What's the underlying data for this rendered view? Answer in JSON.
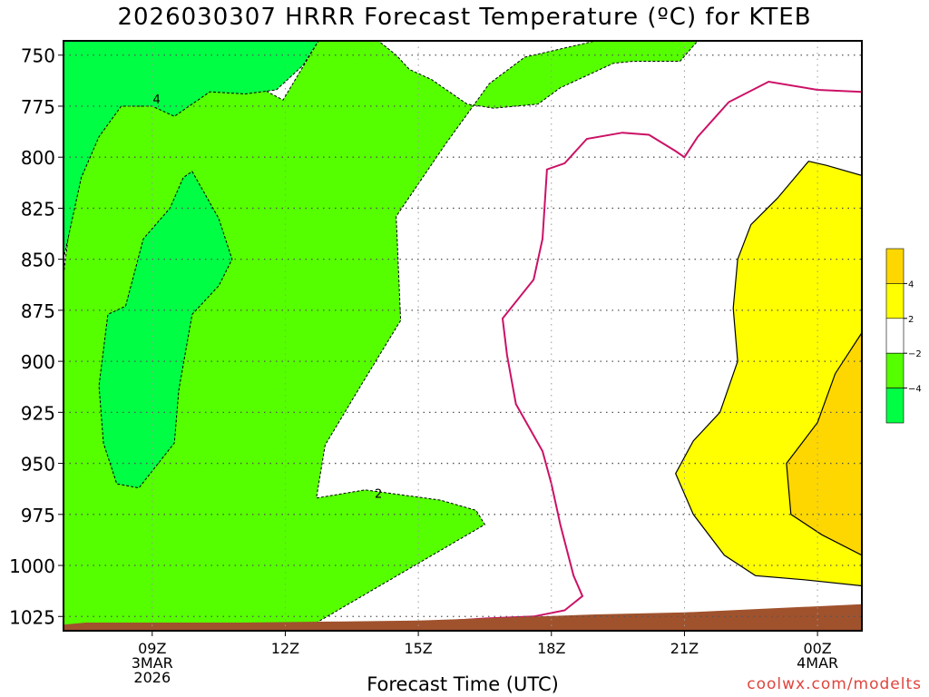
{
  "title": "2026030307 HRRR Forecast Temperature (ºC) for KTEB",
  "xlabel": "Forecast Time (UTC)",
  "credit": "coolwx.com/modelts",
  "chart_data": {
    "type": "filled-contour",
    "title": "2026030307 HRRR Forecast Temperature (ºC) for KTEB",
    "xlabel": "Forecast Time (UTC)",
    "ylabel": "",
    "x_ticks": [
      {
        "hour": 9,
        "label": [
          "09Z",
          "3MAR",
          "2026"
        ]
      },
      {
        "hour": 12,
        "label": [
          "12Z"
        ]
      },
      {
        "hour": 15,
        "label": [
          "15Z"
        ]
      },
      {
        "hour": 18,
        "label": [
          "18Z"
        ]
      },
      {
        "hour": 21,
        "label": [
          "21Z"
        ]
      },
      {
        "hour": 24,
        "label": [
          "00Z",
          "4MAR"
        ]
      }
    ],
    "xlim": [
      7,
      25
    ],
    "y_ticks": [
      750,
      775,
      800,
      825,
      850,
      875,
      900,
      925,
      950,
      975,
      1000,
      1025
    ],
    "ylim_hpa": [
      743,
      1032
    ],
    "y_scale": "pressure",
    "grid": true,
    "colorbar": {
      "labels": [
        "4",
        "2",
        "−2",
        "−4"
      ],
      "levels": [
        4,
        2,
        -2,
        -4
      ],
      "colors": [
        "#ffd700",
        "#ffff00",
        "#ffffff",
        "#55ff00",
        "#00ff44"
      ]
    },
    "colors": {
      "t_below_m4": "#00ff44",
      "t_m4_to_m2": "#55ff00",
      "t_2_to_4": "#ffff00",
      "t_above_4": "#ffd700",
      "zero_line": "#cc1166",
      "ground": "#a0522d"
    },
    "contour_labels": [
      {
        "text": "4",
        "hour": 9.1,
        "p": 772
      },
      {
        "text": "2",
        "hour": 14.1,
        "p": 965
      }
    ],
    "regions": {
      "below_m2": [
        [
          7,
          743
        ],
        [
          12.75,
          743
        ],
        [
          11.95,
          772
        ],
        [
          10.3,
          753
        ],
        [
          9.8,
          754
        ],
        [
          9.2,
          767
        ],
        [
          8.6,
          773
        ],
        [
          8,
          774
        ],
        [
          7.6,
          788
        ],
        [
          7.3,
          806
        ],
        [
          7.05,
          849
        ],
        [
          7,
          858
        ],
        [
          7,
          1037
        ],
        [
          12,
          1037
        ],
        [
          16.5,
          980
        ],
        [
          16.3,
          973
        ],
        [
          15.5,
          968
        ],
        [
          13.8,
          963
        ],
        [
          12.7,
          967
        ],
        [
          12.9,
          941
        ],
        [
          13.7,
          912
        ],
        [
          14.6,
          880
        ],
        [
          14.5,
          829
        ],
        [
          15.6,
          794
        ],
        [
          16.6,
          764
        ],
        [
          17.4,
          751
        ],
        [
          19,
          743
        ],
        [
          21.3,
          743
        ],
        [
          20.9,
          753
        ],
        [
          19.85,
          753
        ],
        [
          19.4,
          754
        ],
        [
          18.9,
          759
        ],
        [
          18.2,
          766
        ],
        [
          17.7,
          774
        ],
        [
          16.7,
          776
        ],
        [
          16.1,
          774
        ],
        [
          15.3,
          762
        ],
        [
          14.8,
          757
        ],
        [
          14.5,
          750
        ],
        [
          14.1,
          743
        ]
      ],
      "below_m4_upper": [
        [
          7,
          743
        ],
        [
          12.75,
          743
        ],
        [
          12.4,
          755
        ],
        [
          11.8,
          767
        ],
        [
          11.1,
          769
        ],
        [
          10.3,
          768
        ],
        [
          9.5,
          780
        ],
        [
          9,
          775
        ],
        [
          8.3,
          775
        ],
        [
          7.8,
          790
        ],
        [
          7.4,
          810
        ],
        [
          7.2,
          830
        ],
        [
          7.0,
          850
        ],
        [
          7,
          743
        ]
      ],
      "below_m4_core": [
        [
          9.9,
          807
        ],
        [
          10.5,
          830
        ],
        [
          10.8,
          850
        ],
        [
          10.5,
          863
        ],
        [
          9.9,
          877
        ],
        [
          9.6,
          914
        ],
        [
          9.5,
          940
        ],
        [
          8.7,
          962
        ],
        [
          8.2,
          960
        ],
        [
          7.9,
          940
        ],
        [
          7.8,
          912
        ],
        [
          8.0,
          877
        ],
        [
          8.4,
          873
        ],
        [
          8.8,
          840
        ],
        [
          9.4,
          825
        ],
        [
          9.7,
          810
        ]
      ],
      "t_2_to_4": [
        [
          23.8,
          802
        ],
        [
          24.2,
          804
        ],
        [
          25,
          809
        ],
        [
          25,
          1010
        ],
        [
          23.7,
          1007
        ],
        [
          22.6,
          1005
        ],
        [
          21.9,
          995
        ],
        [
          21.2,
          975
        ],
        [
          20.8,
          955
        ],
        [
          21.2,
          939
        ],
        [
          21.8,
          925
        ],
        [
          22.2,
          900
        ],
        [
          22.1,
          874
        ],
        [
          22.2,
          850
        ],
        [
          22.5,
          833
        ],
        [
          23.1,
          820
        ]
      ],
      "t_above_4": [
        [
          25,
          886
        ],
        [
          24.4,
          906
        ],
        [
          24.0,
          930
        ],
        [
          23.3,
          950
        ],
        [
          23.4,
          975
        ],
        [
          24.1,
          985
        ],
        [
          25,
          995
        ]
      ],
      "zero_line": [
        [
          14.4,
          1029
        ],
        [
          16.5,
          1026
        ],
        [
          17.6,
          1025
        ],
        [
          18.3,
          1022
        ],
        [
          18.7,
          1015
        ],
        [
          18.5,
          1005
        ],
        [
          18.2,
          980
        ],
        [
          18.0,
          960
        ],
        [
          17.8,
          944
        ],
        [
          17.2,
          921
        ],
        [
          17.0,
          897
        ],
        [
          16.9,
          879
        ],
        [
          17.6,
          860
        ],
        [
          17.8,
          840
        ],
        [
          17.9,
          806
        ],
        [
          18.3,
          803
        ],
        [
          18.8,
          791
        ],
        [
          19.6,
          788
        ],
        [
          20.2,
          789
        ],
        [
          20.8,
          797
        ],
        [
          21.0,
          800
        ],
        [
          21.3,
          790
        ],
        [
          22.0,
          773
        ],
        [
          22.9,
          763
        ],
        [
          24.0,
          767
        ],
        [
          25,
          768
        ]
      ],
      "ground": [
        [
          7,
          1029
        ],
        [
          7.5,
          1028
        ],
        [
          9,
          1028
        ],
        [
          11,
          1028
        ],
        [
          13,
          1027.5
        ],
        [
          15,
          1027
        ],
        [
          17,
          1025.5
        ],
        [
          19,
          1024
        ],
        [
          21,
          1023
        ],
        [
          23,
          1021
        ],
        [
          25,
          1019
        ],
        [
          25,
          1032
        ],
        [
          7,
          1032
        ]
      ]
    }
  }
}
